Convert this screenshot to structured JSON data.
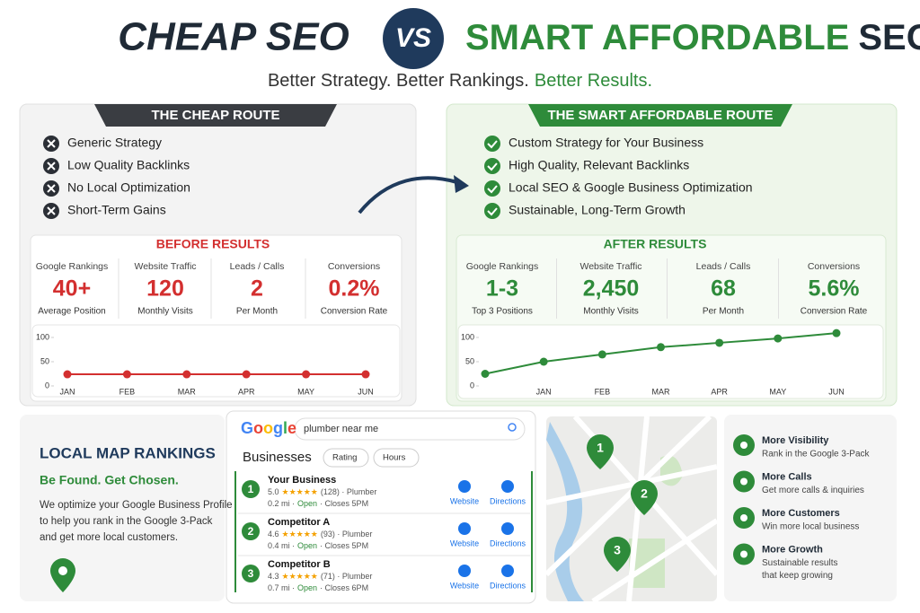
{
  "header": {
    "title_left": "CHEAP SEO",
    "vs": "VS",
    "title_right_green": "SMART AFFORDABLE",
    "title_right_dark": "SEO",
    "tagline": "Better Strategy. Better Rankings.",
    "tagline_green": "Better Results."
  },
  "cheap": {
    "banner": "THE CHEAP ROUTE",
    "items": [
      "Generic Strategy",
      "Low Quality Backlinks",
      "No Local Optimization",
      "Short-Term Gains"
    ],
    "results_title": "BEFORE RESULTS",
    "metrics": [
      {
        "label": "Google Rankings",
        "value": "40+",
        "sub": "Average Position"
      },
      {
        "label": "Website Traffic",
        "value": "120",
        "sub": "Monthly Visits"
      },
      {
        "label": "Leads / Calls",
        "value": "2",
        "sub": "Per Month"
      },
      {
        "label": "Conversions",
        "value": "0.2%",
        "sub": "Conversion Rate"
      }
    ],
    "chart": {
      "type": "line",
      "categories": [
        "JAN",
        "FEB",
        "MAR",
        "APR",
        "MAY",
        "JUN"
      ],
      "values": [
        24,
        24,
        24,
        24,
        24,
        24
      ],
      "ylim": [
        0,
        110
      ],
      "yticks": [
        0,
        50,
        100
      ],
      "color": "#d32f2f"
    }
  },
  "smart": {
    "banner": "THE SMART AFFORDABLE ROUTE",
    "items": [
      "Custom Strategy for Your Business",
      "High Quality, Relevant Backlinks",
      "Local SEO & Google Business Optimization",
      "Sustainable, Long-Term Growth"
    ],
    "results_title": "AFTER RESULTS",
    "metrics": [
      {
        "label": "Google Rankings",
        "value": "1-3",
        "sub": "Top 3 Positions"
      },
      {
        "label": "Website Traffic",
        "value": "2,450",
        "sub": "Monthly Visits"
      },
      {
        "label": "Leads / Calls",
        "value": "68",
        "sub": "Per Month"
      },
      {
        "label": "Conversions",
        "value": "5.6%",
        "sub": "Conversion Rate"
      }
    ],
    "chart": {
      "type": "line",
      "categories": [
        null,
        "JAN",
        "FEB",
        "MAR",
        "APR",
        "MAY",
        "JUN"
      ],
      "values": [
        25,
        50,
        65,
        80,
        89,
        98,
        109
      ],
      "ylim": [
        0,
        110
      ],
      "yticks": [
        0,
        50,
        100
      ],
      "color": "#2e8b3a"
    }
  },
  "local": {
    "title": "LOCAL MAP RANKINGS",
    "subtitle": "Be Found. Get Chosen.",
    "text": [
      "We optimize your Google Business Profile",
      "to help you rank in the Google 3-Pack",
      "and get more local customers."
    ]
  },
  "search": {
    "logo": "Google",
    "query": "plumber near me",
    "heading": "Businesses",
    "filters": [
      "Rating",
      "Hours"
    ],
    "results": [
      {
        "rank": "1",
        "name": "Your Business",
        "rating": "5.0",
        "stars": "★★★★★",
        "reviews": "(128) · Plumber",
        "distance": "0.2 mi ·",
        "status": "Open",
        "closes": "· Closes 5PM",
        "website": "Website",
        "directions": "Directions"
      },
      {
        "rank": "2",
        "name": "Competitor A",
        "rating": "4.6",
        "stars": "★★★★★",
        "reviews": "(93) · Plumber",
        "distance": "0.4 mi ·",
        "status": "Open",
        "closes": "· Closes 5PM",
        "website": "Website",
        "directions": "Directions"
      },
      {
        "rank": "3",
        "name": "Competitor B",
        "rating": "4.3",
        "stars": "★★★★★",
        "reviews": "(71) · Plumber",
        "distance": "0.7 mi ·",
        "status": "Open",
        "closes": "· Closes 6PM",
        "website": "Website",
        "directions": "Directions"
      }
    ]
  },
  "map": {
    "pins": [
      "1",
      "2",
      "3"
    ]
  },
  "benefits": [
    {
      "title": "More Visibility",
      "desc": [
        "Rank in the Google 3-Pack"
      ]
    },
    {
      "title": "More Calls",
      "desc": [
        "Get more calls & inquiries"
      ]
    },
    {
      "title": "More Customers",
      "desc": [
        "Win more local business"
      ]
    },
    {
      "title": "More Growth",
      "desc": [
        "Sustainable results",
        "that keep growing"
      ]
    }
  ]
}
